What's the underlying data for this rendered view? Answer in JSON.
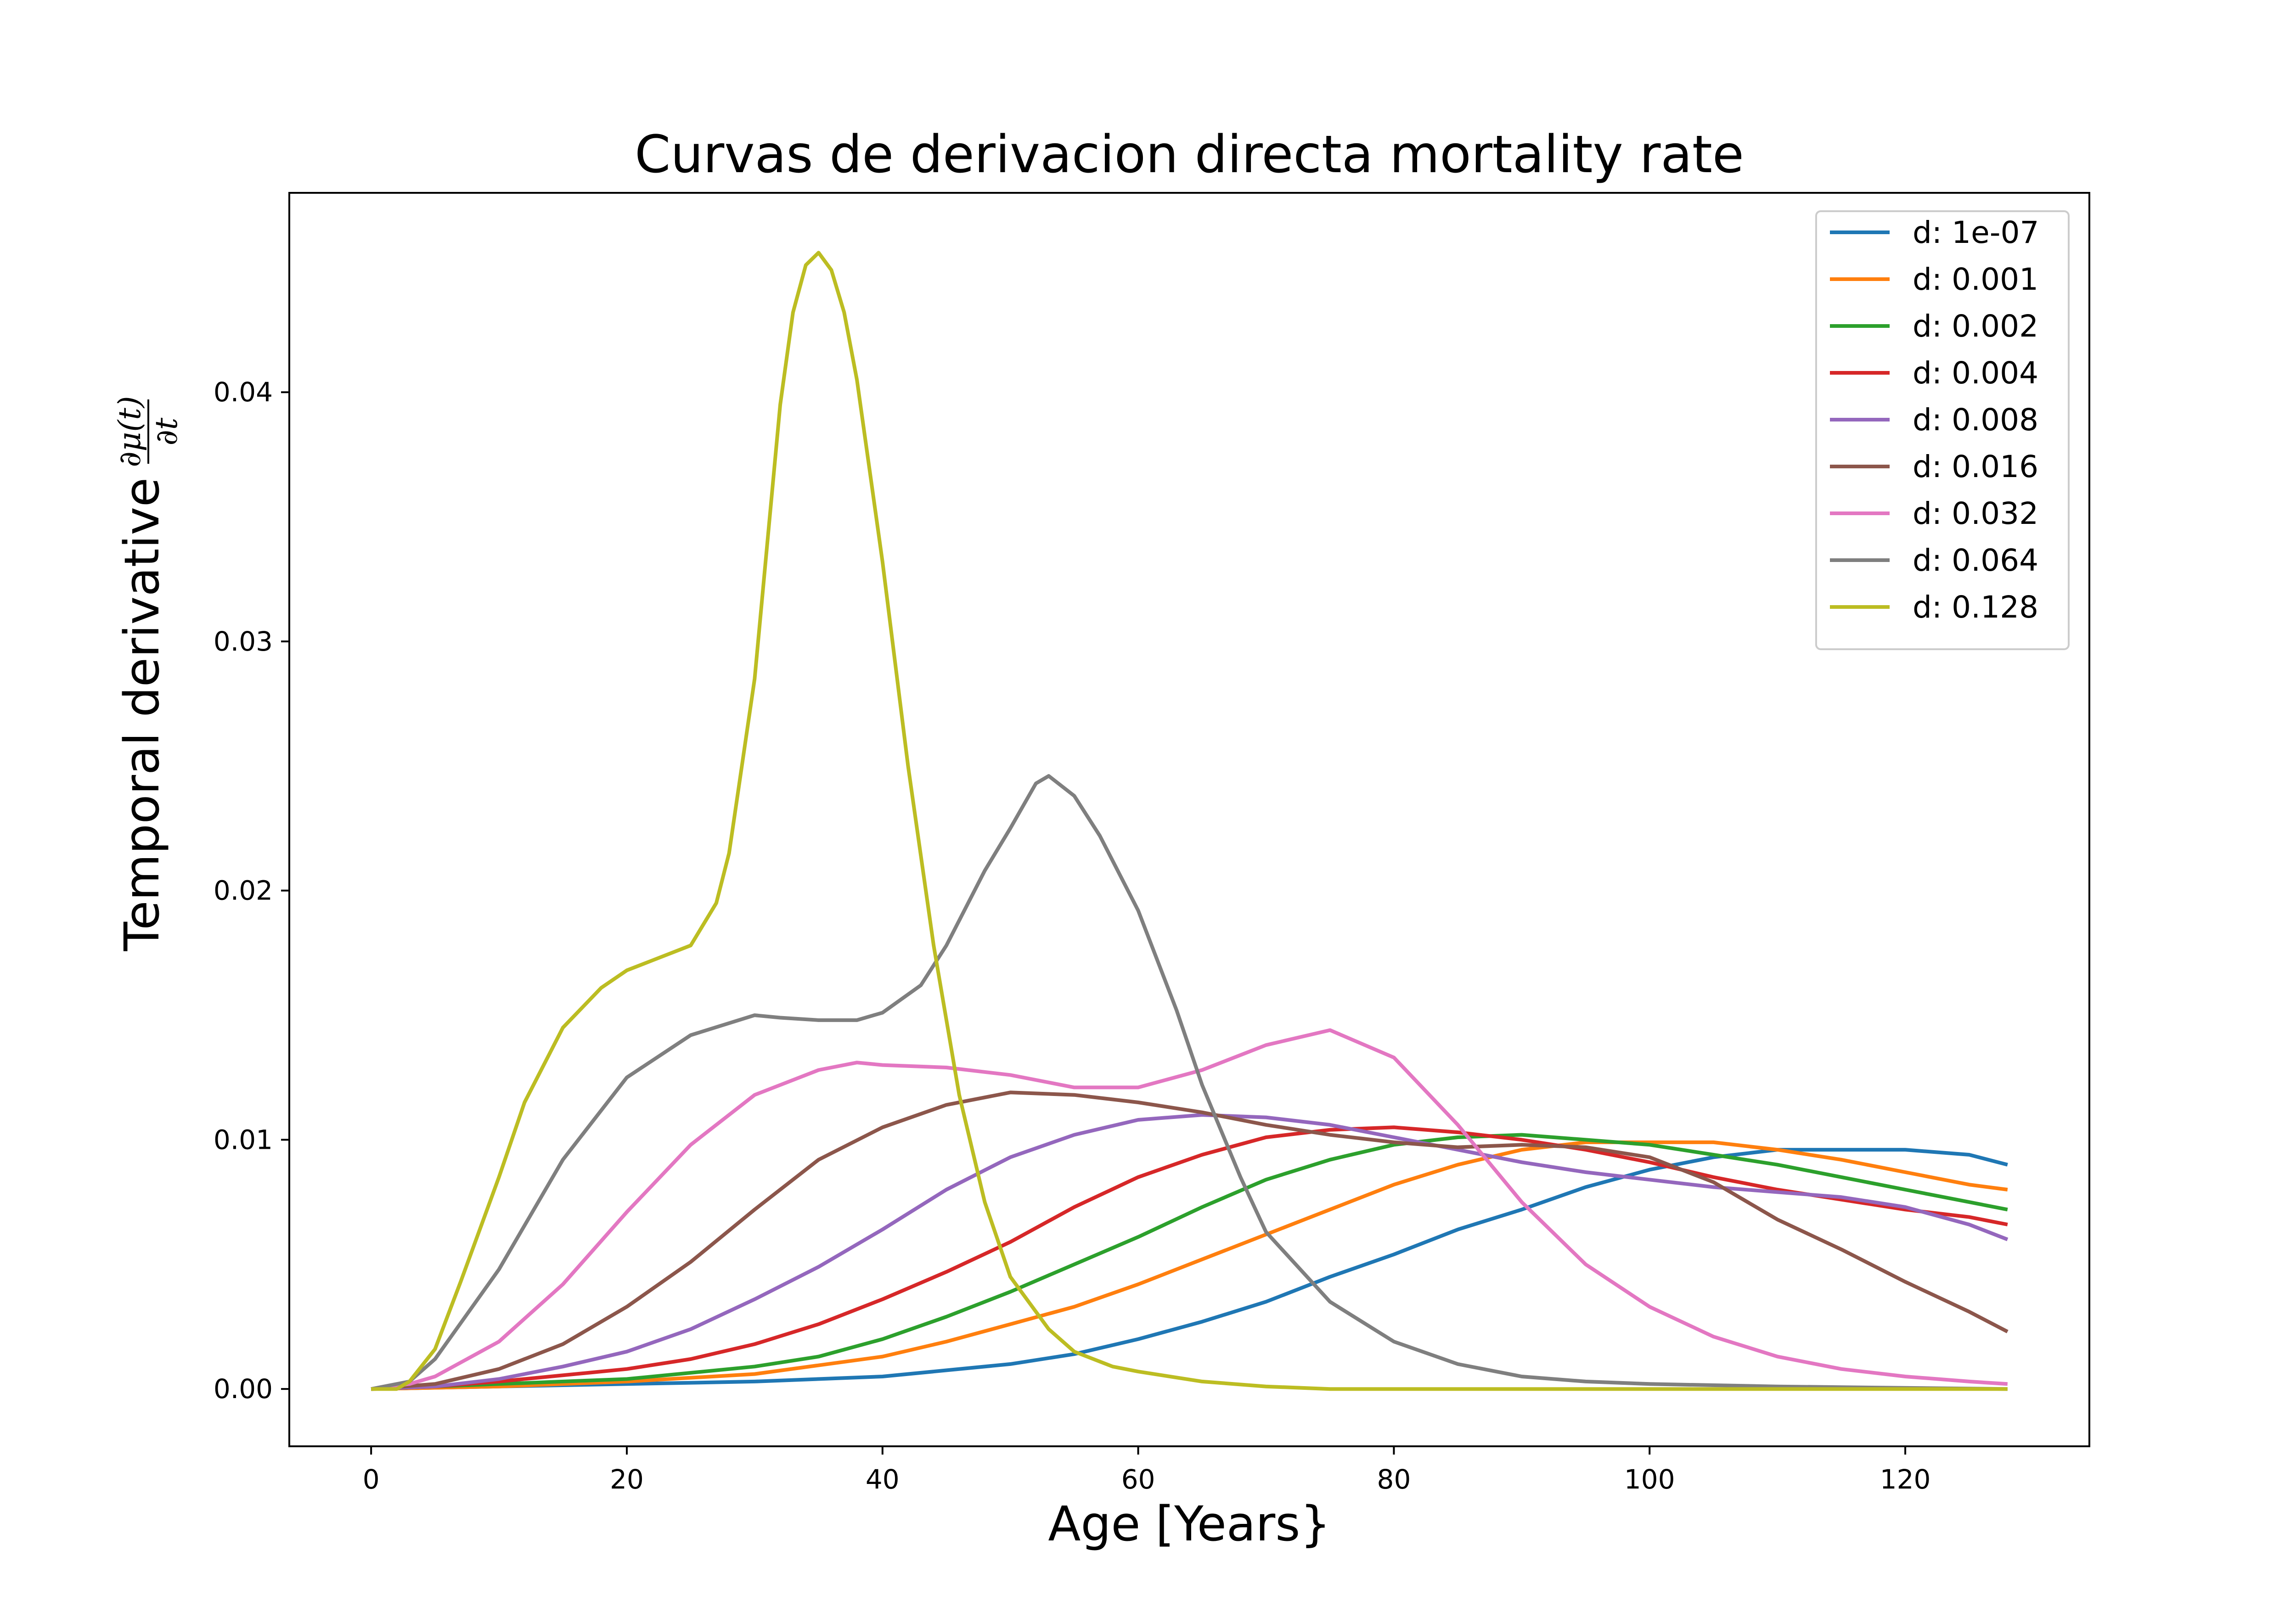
{
  "chart_data": {
    "type": "line",
    "title": "Curvas de derivacion directa mortality rate",
    "xlabel": "Age [Years}",
    "ylabel": "Temporal derivative",
    "ylabel_fraction": {
      "numerator": "∂μ(t)",
      "denominator": "∂t"
    },
    "xlim": [
      -6.4,
      134.4
    ],
    "ylim": [
      -0.0023,
      0.048
    ],
    "xticks": [
      0,
      20,
      40,
      60,
      80,
      100,
      120
    ],
    "yticks": [
      0.0,
      0.01,
      0.02,
      0.03,
      0.04
    ],
    "xtick_labels": [
      "0",
      "20",
      "40",
      "60",
      "80",
      "100",
      "120"
    ],
    "ytick_labels": [
      "0.00",
      "0.01",
      "0.02",
      "0.03",
      "0.04"
    ],
    "grid": false,
    "legend_position": "top-right",
    "series": [
      {
        "name": "d: 1e-07",
        "color": "#1f77b4",
        "points": [
          [
            0,
            0
          ],
          [
            10,
            0.0001
          ],
          [
            20,
            0.0002
          ],
          [
            30,
            0.0003
          ],
          [
            40,
            0.0005
          ],
          [
            50,
            0.001
          ],
          [
            55,
            0.0014
          ],
          [
            60,
            0.002
          ],
          [
            65,
            0.0027
          ],
          [
            70,
            0.0035
          ],
          [
            75,
            0.0045
          ],
          [
            80,
            0.0054
          ],
          [
            85,
            0.0064
          ],
          [
            90,
            0.0072
          ],
          [
            95,
            0.0081
          ],
          [
            100,
            0.0088
          ],
          [
            105,
            0.0093
          ],
          [
            110,
            0.0096
          ],
          [
            115,
            0.0096
          ],
          [
            120,
            0.0096
          ],
          [
            125,
            0.0094
          ],
          [
            128,
            0.009
          ]
        ]
      },
      {
        "name": "d: 0.001",
        "color": "#ff7f0e",
        "points": [
          [
            0,
            0
          ],
          [
            10,
            0.0001
          ],
          [
            20,
            0.0003
          ],
          [
            30,
            0.0006
          ],
          [
            40,
            0.0013
          ],
          [
            45,
            0.0019
          ],
          [
            50,
            0.0026
          ],
          [
            55,
            0.0033
          ],
          [
            60,
            0.0042
          ],
          [
            65,
            0.0052
          ],
          [
            70,
            0.0062
          ],
          [
            75,
            0.0072
          ],
          [
            80,
            0.0082
          ],
          [
            85,
            0.009
          ],
          [
            90,
            0.0096
          ],
          [
            95,
            0.0099
          ],
          [
            100,
            0.0099
          ],
          [
            105,
            0.0099
          ],
          [
            110,
            0.0096
          ],
          [
            115,
            0.0092
          ],
          [
            120,
            0.0087
          ],
          [
            125,
            0.0082
          ],
          [
            128,
            0.008
          ]
        ]
      },
      {
        "name": "d: 0.002",
        "color": "#2ca02c",
        "points": [
          [
            0,
            0
          ],
          [
            10,
            0.0002
          ],
          [
            20,
            0.0004
          ],
          [
            30,
            0.0009
          ],
          [
            35,
            0.0013
          ],
          [
            40,
            0.002
          ],
          [
            45,
            0.0029
          ],
          [
            50,
            0.0039
          ],
          [
            55,
            0.005
          ],
          [
            60,
            0.0061
          ],
          [
            65,
            0.0073
          ],
          [
            70,
            0.0084
          ],
          [
            75,
            0.0092
          ],
          [
            80,
            0.0098
          ],
          [
            85,
            0.0101
          ],
          [
            90,
            0.0102
          ],
          [
            95,
            0.01
          ],
          [
            100,
            0.0098
          ],
          [
            105,
            0.0094
          ],
          [
            110,
            0.009
          ],
          [
            115,
            0.0085
          ],
          [
            120,
            0.008
          ],
          [
            125,
            0.0075
          ],
          [
            128,
            0.0072
          ]
        ]
      },
      {
        "name": "d: 0.004",
        "color": "#d62728",
        "points": [
          [
            0,
            0
          ],
          [
            5,
            0.0001
          ],
          [
            10,
            0.0003
          ],
          [
            20,
            0.0008
          ],
          [
            25,
            0.0012
          ],
          [
            30,
            0.0018
          ],
          [
            35,
            0.0026
          ],
          [
            40,
            0.0036
          ],
          [
            45,
            0.0047
          ],
          [
            50,
            0.0059
          ],
          [
            55,
            0.0073
          ],
          [
            60,
            0.0085
          ],
          [
            65,
            0.0094
          ],
          [
            70,
            0.0101
          ],
          [
            75,
            0.0104
          ],
          [
            80,
            0.0105
          ],
          [
            85,
            0.0103
          ],
          [
            90,
            0.01
          ],
          [
            95,
            0.0096
          ],
          [
            100,
            0.0091
          ],
          [
            105,
            0.0085
          ],
          [
            110,
            0.008
          ],
          [
            115,
            0.0076
          ],
          [
            120,
            0.0072
          ],
          [
            125,
            0.0069
          ],
          [
            128,
            0.0066
          ]
        ]
      },
      {
        "name": "d: 0.008",
        "color": "#9467bd",
        "points": [
          [
            0,
            0
          ],
          [
            5,
            0.0001
          ],
          [
            10,
            0.0004
          ],
          [
            15,
            0.0009
          ],
          [
            20,
            0.0015
          ],
          [
            25,
            0.0024
          ],
          [
            30,
            0.0036
          ],
          [
            35,
            0.0049
          ],
          [
            40,
            0.0064
          ],
          [
            45,
            0.008
          ],
          [
            50,
            0.0093
          ],
          [
            55,
            0.0102
          ],
          [
            60,
            0.0108
          ],
          [
            65,
            0.011
          ],
          [
            70,
            0.0109
          ],
          [
            75,
            0.0106
          ],
          [
            80,
            0.0101
          ],
          [
            85,
            0.0096
          ],
          [
            90,
            0.0091
          ],
          [
            95,
            0.0087
          ],
          [
            100,
            0.0084
          ],
          [
            105,
            0.0081
          ],
          [
            110,
            0.0079
          ],
          [
            115,
            0.0077
          ],
          [
            120,
            0.0073
          ],
          [
            125,
            0.0066
          ],
          [
            128,
            0.006
          ]
        ]
      },
      {
        "name": "d: 0.016",
        "color": "#8c564b",
        "points": [
          [
            0,
            0
          ],
          [
            5,
            0.0002
          ],
          [
            10,
            0.0008
          ],
          [
            15,
            0.0018
          ],
          [
            20,
            0.0033
          ],
          [
            25,
            0.0051
          ],
          [
            30,
            0.0072
          ],
          [
            35,
            0.0092
          ],
          [
            40,
            0.0105
          ],
          [
            45,
            0.0114
          ],
          [
            50,
            0.0119
          ],
          [
            55,
            0.0118
          ],
          [
            60,
            0.0115
          ],
          [
            65,
            0.0111
          ],
          [
            70,
            0.0106
          ],
          [
            75,
            0.0102
          ],
          [
            80,
            0.0099
          ],
          [
            85,
            0.0097
          ],
          [
            90,
            0.0098
          ],
          [
            95,
            0.0097
          ],
          [
            100,
            0.0093
          ],
          [
            105,
            0.0083
          ],
          [
            110,
            0.0068
          ],
          [
            115,
            0.0056
          ],
          [
            120,
            0.0043
          ],
          [
            125,
            0.0031
          ],
          [
            128,
            0.0023
          ]
        ]
      },
      {
        "name": "d: 0.032",
        "color": "#e377c2",
        "points": [
          [
            0,
            0
          ],
          [
            3,
            0.0002
          ],
          [
            5,
            0.0005
          ],
          [
            10,
            0.0019
          ],
          [
            15,
            0.0042
          ],
          [
            20,
            0.0071
          ],
          [
            25,
            0.0098
          ],
          [
            30,
            0.0118
          ],
          [
            35,
            0.0128
          ],
          [
            38,
            0.0131
          ],
          [
            40,
            0.013
          ],
          [
            45,
            0.0129
          ],
          [
            50,
            0.0126
          ],
          [
            55,
            0.0121
          ],
          [
            60,
            0.0121
          ],
          [
            65,
            0.0128
          ],
          [
            70,
            0.0138
          ],
          [
            75,
            0.0144
          ],
          [
            80,
            0.0133
          ],
          [
            85,
            0.0106
          ],
          [
            90,
            0.0075
          ],
          [
            95,
            0.005
          ],
          [
            100,
            0.0033
          ],
          [
            105,
            0.0021
          ],
          [
            110,
            0.0013
          ],
          [
            115,
            0.0008
          ],
          [
            120,
            0.0005
          ],
          [
            125,
            0.0003
          ],
          [
            128,
            0.0002
          ]
        ]
      },
      {
        "name": "d: 0.064",
        "color": "#7f7f7f",
        "points": [
          [
            0,
            0
          ],
          [
            3,
            0.0003
          ],
          [
            5,
            0.0012
          ],
          [
            10,
            0.0048
          ],
          [
            15,
            0.0092
          ],
          [
            20,
            0.0125
          ],
          [
            25,
            0.0142
          ],
          [
            30,
            0.015
          ],
          [
            32,
            0.0149
          ],
          [
            35,
            0.0148
          ],
          [
            38,
            0.0148
          ],
          [
            40,
            0.0151
          ],
          [
            43,
            0.0162
          ],
          [
            45,
            0.0178
          ],
          [
            48,
            0.0208
          ],
          [
            50,
            0.0225
          ],
          [
            52,
            0.0243
          ],
          [
            53,
            0.0246
          ],
          [
            55,
            0.0238
          ],
          [
            57,
            0.0222
          ],
          [
            60,
            0.0192
          ],
          [
            63,
            0.0152
          ],
          [
            65,
            0.0122
          ],
          [
            68,
            0.0085
          ],
          [
            70,
            0.0063
          ],
          [
            75,
            0.0035
          ],
          [
            80,
            0.0019
          ],
          [
            85,
            0.001
          ],
          [
            90,
            0.0005
          ],
          [
            95,
            0.0003
          ],
          [
            100,
            0.0002
          ],
          [
            110,
            0.0001
          ],
          [
            128,
            0
          ]
        ]
      },
      {
        "name": "d: 0.128",
        "color": "#bcbd22",
        "points": [
          [
            0,
            0
          ],
          [
            2,
            0
          ],
          [
            3,
            0.0003
          ],
          [
            5,
            0.0016
          ],
          [
            7,
            0.0043
          ],
          [
            10,
            0.0085
          ],
          [
            12,
            0.0115
          ],
          [
            15,
            0.0145
          ],
          [
            18,
            0.0161
          ],
          [
            20,
            0.0168
          ],
          [
            22,
            0.0172
          ],
          [
            25,
            0.0178
          ],
          [
            27,
            0.0195
          ],
          [
            28,
            0.0215
          ],
          [
            30,
            0.0285
          ],
          [
            32,
            0.0395
          ],
          [
            33,
            0.0432
          ],
          [
            34,
            0.0451
          ],
          [
            35,
            0.0456
          ],
          [
            36,
            0.0449
          ],
          [
            37,
            0.0432
          ],
          [
            38,
            0.0405
          ],
          [
            40,
            0.0332
          ],
          [
            42,
            0.025
          ],
          [
            44,
            0.0178
          ],
          [
            46,
            0.0118
          ],
          [
            48,
            0.0075
          ],
          [
            50,
            0.0045
          ],
          [
            53,
            0.0024
          ],
          [
            55,
            0.0015
          ],
          [
            58,
            0.0009
          ],
          [
            60,
            0.0007
          ],
          [
            65,
            0.0003
          ],
          [
            70,
            0.0001
          ],
          [
            75,
            0
          ],
          [
            128,
            0
          ]
        ]
      }
    ]
  }
}
